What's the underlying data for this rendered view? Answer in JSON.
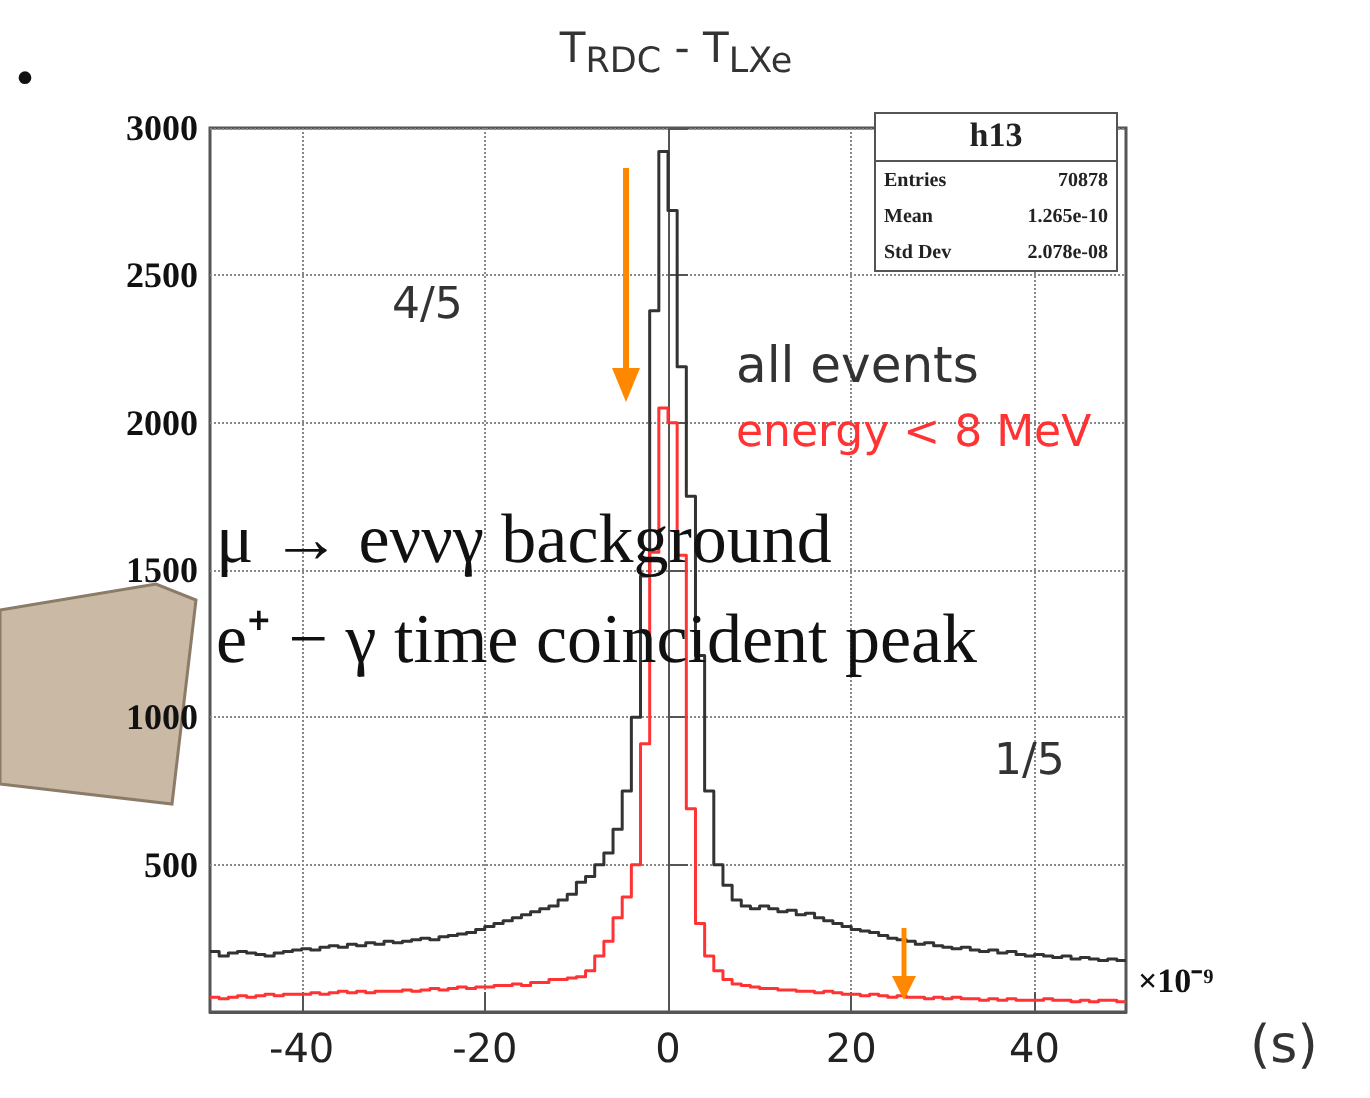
{
  "chart_data": {
    "type": "histogram",
    "title": "T$_{RDC}$ - T$_{LXe}$",
    "xlabel": "(s)",
    "bins": [
      -50,
      -49,
      -48,
      -47,
      -46,
      -45,
      -44,
      -43,
      -42,
      -41,
      -40,
      -39,
      -38,
      -37,
      -36,
      -35,
      -34,
      -33,
      -32,
      -31,
      -30,
      -29,
      -28,
      -27,
      -26,
      -25,
      -24,
      -23,
      -22,
      -21,
      -20,
      -19,
      -18,
      -17,
      -16,
      -15,
      -14,
      -13,
      -12,
      -11,
      -10,
      -9,
      -8,
      -7,
      -6,
      -5,
      -4,
      -3,
      -2,
      -1,
      0,
      1,
      2,
      3,
      4,
      5,
      6,
      7,
      8,
      9,
      10,
      11,
      12,
      13,
      14,
      15,
      16,
      17,
      18,
      19,
      20,
      21,
      22,
      23,
      24,
      25,
      26,
      27,
      28,
      29,
      30,
      31,
      32,
      33,
      34,
      35,
      36,
      37,
      38,
      39,
      40,
      41,
      42,
      43,
      44,
      45,
      46,
      47,
      48,
      49,
      50
    ],
    "series": [
      {
        "name": "all events",
        "color": "#333333",
        "values": [
          205,
          190,
          200,
          205,
          200,
          195,
          190,
          200,
          205,
          210,
          215,
          210,
          220,
          225,
          220,
          230,
          225,
          235,
          230,
          240,
          235,
          240,
          245,
          250,
          245,
          255,
          260,
          265,
          270,
          280,
          290,
          300,
          310,
          320,
          330,
          340,
          350,
          360,
          380,
          400,
          440,
          460,
          500,
          540,
          620,
          750,
          1000,
          1480,
          2380,
          2920,
          2720,
          2190,
          1750,
          1210,
          750,
          500,
          430,
          380,
          360,
          350,
          360,
          350,
          340,
          345,
          330,
          335,
          320,
          310,
          300,
          290,
          280,
          275,
          270,
          260,
          250,
          245,
          240,
          230,
          235,
          225,
          220,
          215,
          220,
          210,
          205,
          210,
          200,
          205,
          195,
          190,
          195,
          190,
          185,
          190,
          180,
          185,
          180,
          175,
          180,
          175
        ]
      },
      {
        "name": "energy < 8 MeV",
        "color": "#ff3333",
        "values": [
          50,
          45,
          50,
          55,
          50,
          55,
          60,
          55,
          60,
          60,
          60,
          65,
          60,
          65,
          70,
          65,
          70,
          65,
          70,
          70,
          70,
          75,
          70,
          75,
          80,
          75,
          80,
          85,
          80,
          85,
          85,
          90,
          90,
          95,
          90,
          100,
          100,
          110,
          110,
          115,
          120,
          140,
          190,
          240,
          320,
          390,
          500,
          910,
          1560,
          2050,
          2000,
          1550,
          690,
          300,
          190,
          140,
          110,
          95,
          90,
          85,
          80,
          80,
          75,
          75,
          70,
          70,
          65,
          70,
          65,
          60,
          60,
          55,
          60,
          55,
          50,
          55,
          50,
          50,
          45,
          50,
          45,
          50,
          45,
          45,
          40,
          45,
          40,
          45,
          40,
          40,
          40,
          45,
          40,
          40,
          35,
          40,
          35,
          40,
          40,
          35
        ]
      }
    ],
    "xlim": [
      -50,
      50
    ],
    "xticks": [
      -40,
      -20,
      0,
      20,
      40
    ],
    "ylim": [
      0,
      3000
    ],
    "yticks": [
      500,
      1000,
      1500,
      2000,
      2500,
      3000
    ],
    "grid": true,
    "legend": false,
    "line_style": "solid",
    "annotations": [
      "•",
      "4/5",
      "1/5",
      "μ → eννγ background",
      "e⁺ − γ time coincident peak",
      "×10⁻⁹",
      "h13",
      "Entries 70878",
      "Mean 1.265e-10",
      "Std Dev 2.078e-08"
    ]
  }
}
